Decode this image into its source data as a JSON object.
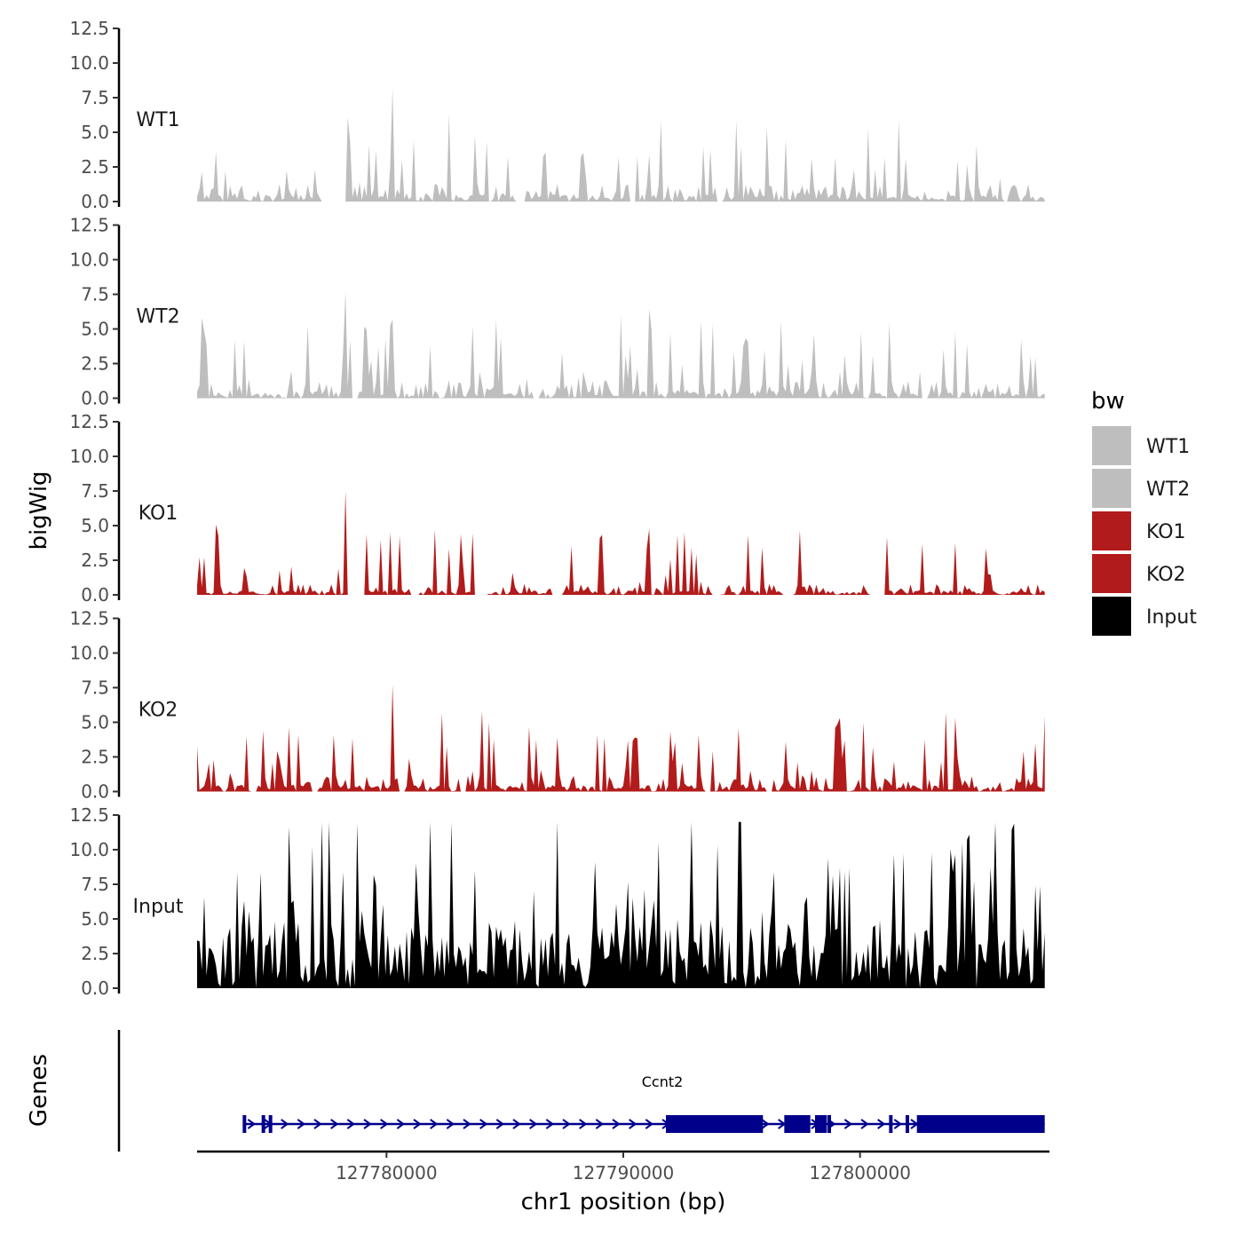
{
  "chart_data": {
    "type": "area",
    "subtype": "genome-browser-tracks",
    "ylabel": "bigWig",
    "gene_panel_label": "Genes",
    "xlabel": "chr1 position (bp)",
    "x_range": [
      127772000,
      127808000
    ],
    "x_ticks": [
      127780000,
      127790000,
      127800000
    ],
    "x_tick_labels": [
      "127780000",
      "127790000",
      "127800000"
    ],
    "y_range": [
      0,
      12.5
    ],
    "y_ticks": [
      0,
      2.5,
      5,
      7.5,
      10,
      12.5
    ],
    "y_tick_labels": [
      "0.0",
      "2.5",
      "5.0",
      "7.5",
      "10.0",
      "12.5"
    ],
    "data_x_range": [
      127772000,
      127807800
    ],
    "tracks": [
      {
        "name": "WT1",
        "color": "#bebebe",
        "max": 8.2,
        "base": 1.3,
        "peak": 5.6,
        "density": 0.55,
        "seed": 11,
        "gaps": [
          [
            127777200,
            127778300
          ],
          [
            127785500,
            127785900
          ],
          [
            127790300,
            127790500
          ],
          [
            127793900,
            127794200
          ],
          [
            127806100,
            127806300
          ]
        ]
      },
      {
        "name": "WT2",
        "color": "#bebebe",
        "max": 7.7,
        "base": 1.3,
        "peak": 5.4,
        "density": 0.55,
        "seed": 23,
        "gaps": [
          [
            127778500,
            127778800
          ],
          [
            127786200,
            127786500
          ],
          [
            127802600,
            127802900
          ]
        ]
      },
      {
        "name": "KO1",
        "color": "#b21b1b",
        "max": 7.5,
        "base": 0.8,
        "peak": 4.6,
        "density": 0.45,
        "seed": 37,
        "gaps": [
          [
            127778200,
            127779100
          ],
          [
            127781000,
            127781400
          ],
          [
            127783700,
            127784300
          ],
          [
            127787000,
            127787500
          ],
          [
            127793700,
            127794100
          ],
          [
            127796700,
            127797200
          ],
          [
            127800400,
            127801100
          ]
        ]
      },
      {
        "name": "KO2",
        "color": "#b21b1b",
        "max": 7.7,
        "base": 1.2,
        "peak": 5.0,
        "density": 0.5,
        "seed": 53,
        "gaps": [
          [
            127774200,
            127774500
          ],
          [
            127776800,
            127777100
          ],
          [
            127780500,
            127780800
          ],
          [
            127783100,
            127783400
          ],
          [
            127793400,
            127793700
          ],
          [
            127796000,
            127796300
          ]
        ]
      },
      {
        "name": "Input",
        "color": "#000000",
        "max": 12.0,
        "base": 4.8,
        "peak": 9.5,
        "density": 0.85,
        "seed": 71,
        "gaps": []
      }
    ],
    "legend": {
      "title": "bw",
      "position": "right",
      "entries": [
        {
          "label": "WT1",
          "color": "#bebebe"
        },
        {
          "label": "WT2",
          "color": "#bebebe"
        },
        {
          "label": "KO1",
          "color": "#b21b1b"
        },
        {
          "label": "KO2",
          "color": "#b21b1b"
        },
        {
          "label": "Input",
          "color": "#000000"
        }
      ]
    },
    "gene": {
      "name": "Ccnt2",
      "strand": "+",
      "color": "#00008b",
      "start": 127774000,
      "end": 127807800,
      "small_exons": [
        127774000,
        127774800,
        127775100,
        127797500,
        127798700,
        127801300,
        127802000
      ],
      "big_exons": [
        [
          127791800,
          127793600
        ],
        [
          127793600,
          127795900
        ],
        [
          127796800,
          127797900
        ],
        [
          127798100,
          127798600
        ],
        [
          127802400,
          127806200
        ],
        [
          127806200,
          127807800
        ]
      ]
    }
  }
}
